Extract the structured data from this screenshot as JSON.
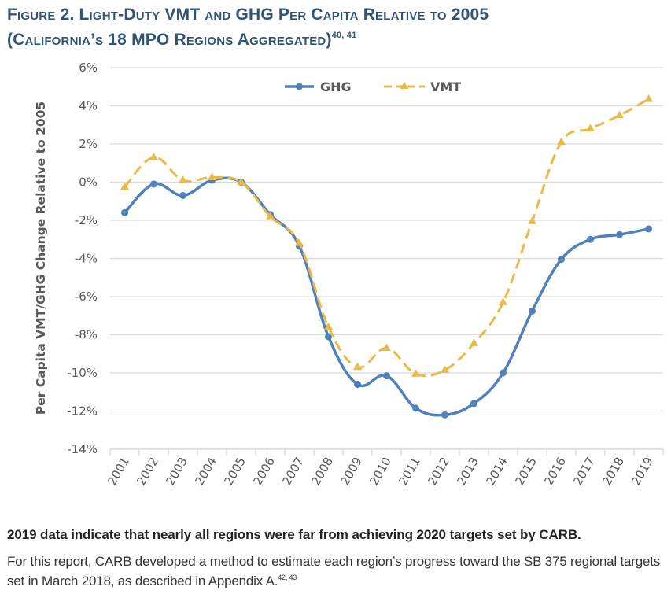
{
  "figure": {
    "title_line1": "Figure 2. Light-Duty VMT and GHG Per Capita Relative to 2005",
    "title_line2": "(California’s 18 MPO Regions Aggregated)",
    "title_superscript": "40, 41"
  },
  "caption": {
    "finding": "2019 data indicate that nearly all regions were far from achieving 2020 targets set by CARB.",
    "body": "For this report, CARB developed a method to estimate each region’s progress toward the SB 375 regional targets set in March 2018, as described in Appendix A.",
    "body_superscript": "42, 43"
  },
  "colors": {
    "title": "#2f5476",
    "ghg": "#4f81bd",
    "vmt": "#e9b94b",
    "grid": "#d9d9d9",
    "text": "#595959"
  },
  "chart_data": {
    "type": "line",
    "title": "Light-Duty VMT and GHG Per Capita Relative to 2005 (California’s 18 MPO Regions Aggregated)",
    "xlabel": "",
    "ylabel": "Per Capita VMT/GHG Change Relative to 2005",
    "ylim": [
      -14,
      6
    ],
    "ytick_step": 2,
    "yticks": [
      "6%",
      "4%",
      "2%",
      "0%",
      "-2%",
      "-4%",
      "-6%",
      "-8%",
      "-10%",
      "-12%",
      "-14%"
    ],
    "grid": true,
    "legend_position": "top-center",
    "categories": [
      "2001",
      "2002",
      "2003",
      "2004",
      "2005",
      "2006",
      "2007",
      "2008",
      "2009",
      "2010",
      "2011",
      "2012",
      "2013",
      "2014",
      "2015",
      "2016",
      "2017",
      "2018",
      "2019"
    ],
    "series": [
      {
        "name": "GHG",
        "style": "solid",
        "marker": "circle",
        "values": [
          -1.6,
          -0.1,
          -0.7,
          0.1,
          0.0,
          -1.7,
          -3.35,
          -8.1,
          -10.6,
          -10.15,
          -11.85,
          -12.2,
          -11.6,
          -10.0,
          -6.75,
          -4.05,
          -3.0,
          -2.75,
          -2.45
        ]
      },
      {
        "name": "VMT",
        "style": "dashed",
        "marker": "triangle",
        "values": [
          -0.25,
          1.3,
          0.1,
          0.25,
          0.0,
          -1.8,
          -3.2,
          -7.6,
          -9.7,
          -8.7,
          -10.05,
          -9.85,
          -8.45,
          -6.3,
          -2.05,
          2.1,
          2.8,
          3.5,
          4.35
        ]
      }
    ]
  }
}
